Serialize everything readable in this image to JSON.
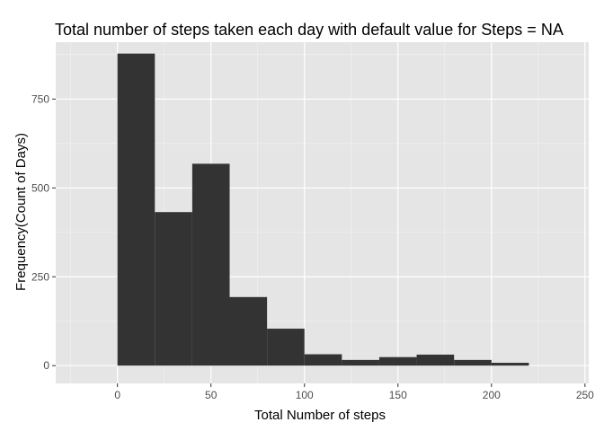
{
  "chart_data": {
    "type": "bar",
    "title": "Total number of steps taken each day with default value for Steps = NA",
    "xlabel": "Total Number of steps",
    "ylabel": "Frequency(Count of Days)",
    "xlim": [
      -33,
      252
    ],
    "ylim": [
      -50,
      910
    ],
    "x_ticks": [
      0,
      50,
      100,
      150,
      200,
      250
    ],
    "x_tick_labels": [
      "0",
      "50",
      "100",
      "150",
      "200",
      "250"
    ],
    "y_ticks": [
      0,
      250,
      500,
      750
    ],
    "y_tick_labels": [
      "0",
      "250",
      "500",
      "750"
    ],
    "bin_width": 20,
    "bins": [
      {
        "x0": 0,
        "x1": 20,
        "count": 878
      },
      {
        "x0": 20,
        "x1": 40,
        "count": 432
      },
      {
        "x0": 40,
        "x1": 60,
        "count": 568
      },
      {
        "x0": 60,
        "x1": 80,
        "count": 193
      },
      {
        "x0": 80,
        "x1": 100,
        "count": 104
      },
      {
        "x0": 100,
        "x1": 120,
        "count": 32
      },
      {
        "x0": 120,
        "x1": 140,
        "count": 16
      },
      {
        "x0": 140,
        "x1": 160,
        "count": 24
      },
      {
        "x0": 160,
        "x1": 180,
        "count": 31
      },
      {
        "x0": 180,
        "x1": 200,
        "count": 16
      },
      {
        "x0": 200,
        "x1": 220,
        "count": 8
      }
    ],
    "grid": true,
    "colors": {
      "panel": "#e5e5e5",
      "grid_major": "#ffffff",
      "grid_minor": "#f2f2f2",
      "bar": "#333333",
      "tick_text": "#4d4d4d"
    }
  }
}
